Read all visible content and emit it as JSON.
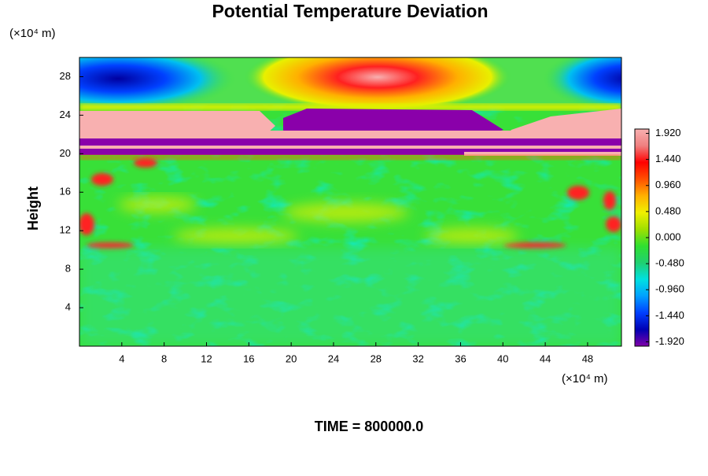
{
  "chart_data": {
    "type": "heatmap",
    "title": "Potential Temperature Deviation",
    "ylabel": "Height",
    "y_unit": "(×10⁴ m)",
    "x_unit": "(×10⁴ m)",
    "footer": "TIME = 800000.0",
    "xlim": [
      0,
      51.2
    ],
    "ylim": [
      0,
      30
    ],
    "xticks": [
      4,
      8,
      12,
      16,
      20,
      24,
      28,
      32,
      36,
      40,
      44,
      48
    ],
    "yticks": [
      4,
      8,
      12,
      16,
      20,
      24,
      28
    ],
    "clim": [
      -2,
      2
    ],
    "cticks": [
      {
        "value": 1.92,
        "label": "1.920"
      },
      {
        "value": 1.44,
        "label": "1.440"
      },
      {
        "value": 0.96,
        "label": "0.960"
      },
      {
        "value": 0.48,
        "label": "0.480"
      },
      {
        "value": 0,
        "label": "0.000"
      },
      {
        "value": -0.48,
        "label": "-0.480"
      },
      {
        "value": -0.96,
        "label": "-0.960"
      },
      {
        "value": -1.44,
        "label": "-1.440"
      },
      {
        "value": -1.92,
        "label": "-1.920"
      }
    ],
    "colormap": [
      "#8000a8",
      "#0000b4",
      "#0040ff",
      "#00a0ff",
      "#00e0e0",
      "#20d070",
      "#30e030",
      "#a0e000",
      "#f0f000",
      "#ffb000",
      "#ff5000",
      "#ff0000",
      "#f08080",
      "#f8b0b0"
    ]
  }
}
